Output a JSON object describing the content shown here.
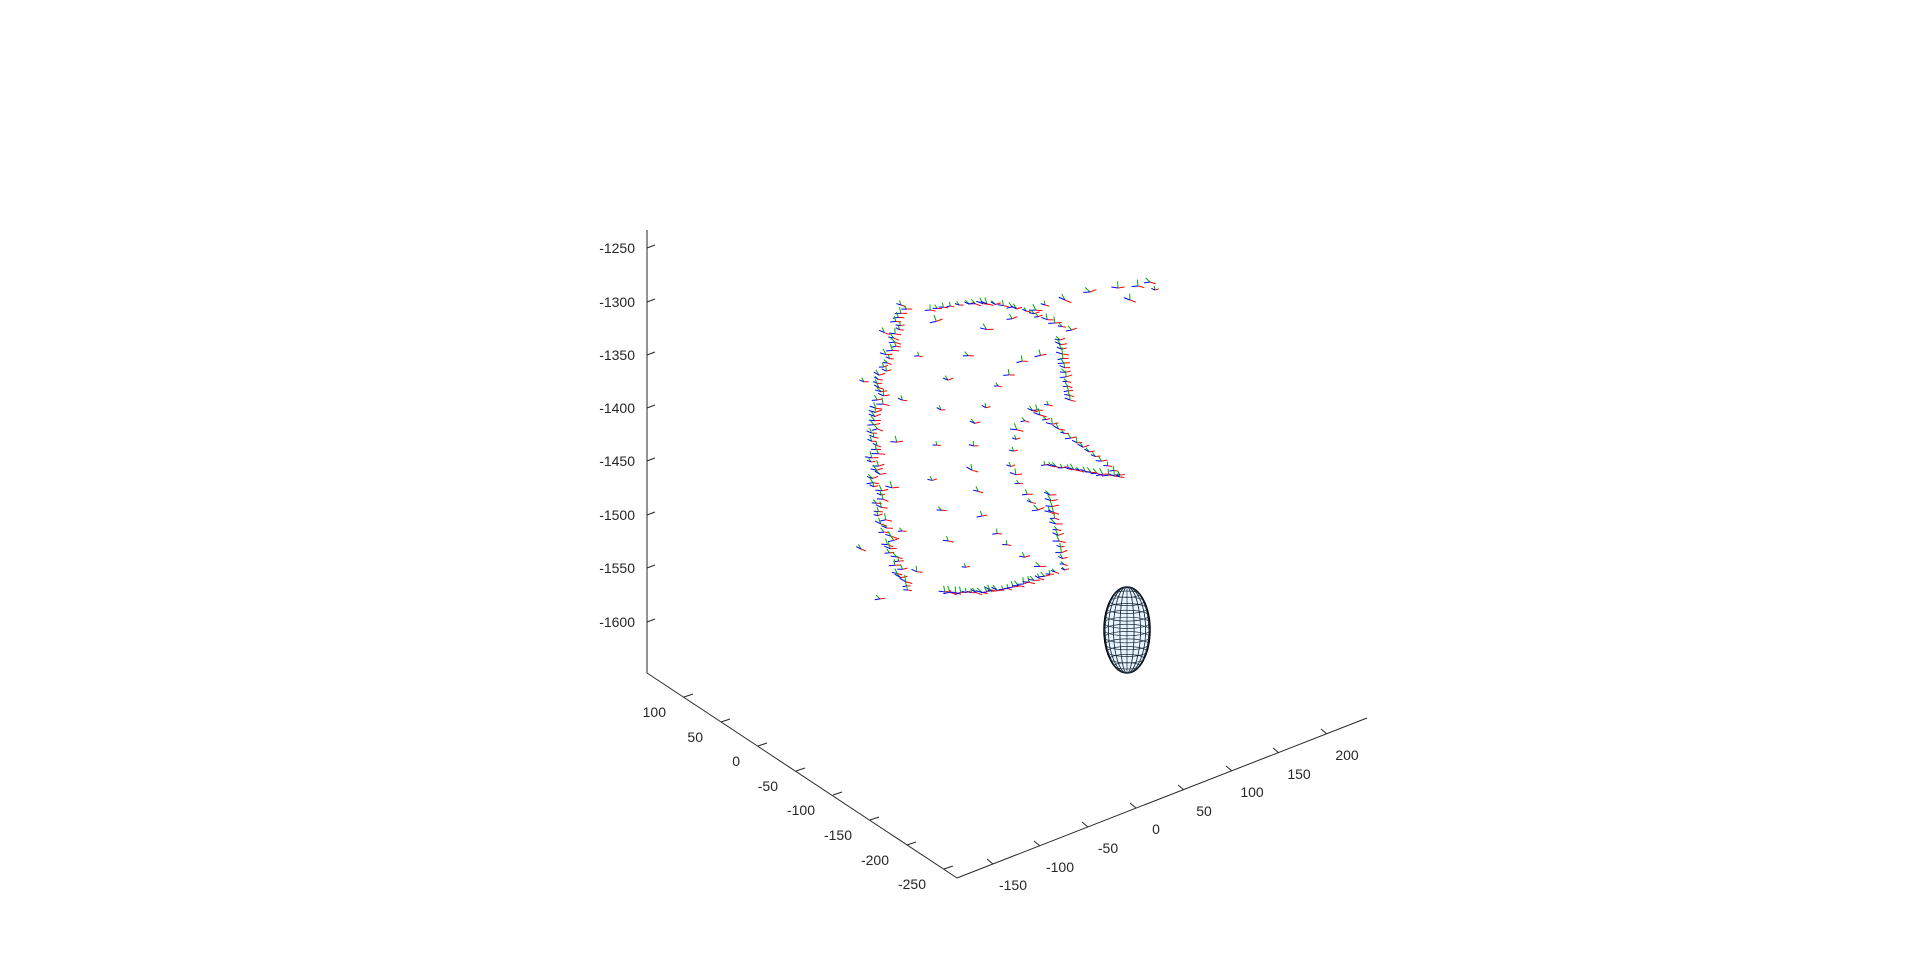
{
  "figure": {
    "background": "#ffffff",
    "axis_color": "#262626"
  },
  "chart_data": {
    "type": "scatter",
    "view": "3d",
    "title": "",
    "xlabel": "",
    "ylabel": "",
    "zlabel": "",
    "grid": false,
    "legend": "none",
    "xlim": [
      -175,
      225
    ],
    "ylim": [
      -275,
      125
    ],
    "zlim": [
      -1650,
      -1230
    ],
    "xticks": [
      "-150",
      "-100",
      "-50",
      "0",
      "50",
      "100",
      "150",
      "200"
    ],
    "yticks": [
      "100",
      "50",
      "0",
      "-50",
      "-100",
      "-150",
      "-200",
      "-250"
    ],
    "zticks": [
      "-1250",
      "-1300",
      "-1350",
      "-1400",
      "-1450",
      "-1500",
      "-1550",
      "-1600"
    ],
    "series": [
      {
        "kind": "vector-triads",
        "colors": [
          "#ff0000",
          "#00aa00",
          "#0000ff"
        ],
        "count_estimate": 400
      },
      {
        "kind": "ellipsoid-mesh",
        "edge_color": "#000000",
        "face_color": "#e8f4ff"
      }
    ]
  }
}
